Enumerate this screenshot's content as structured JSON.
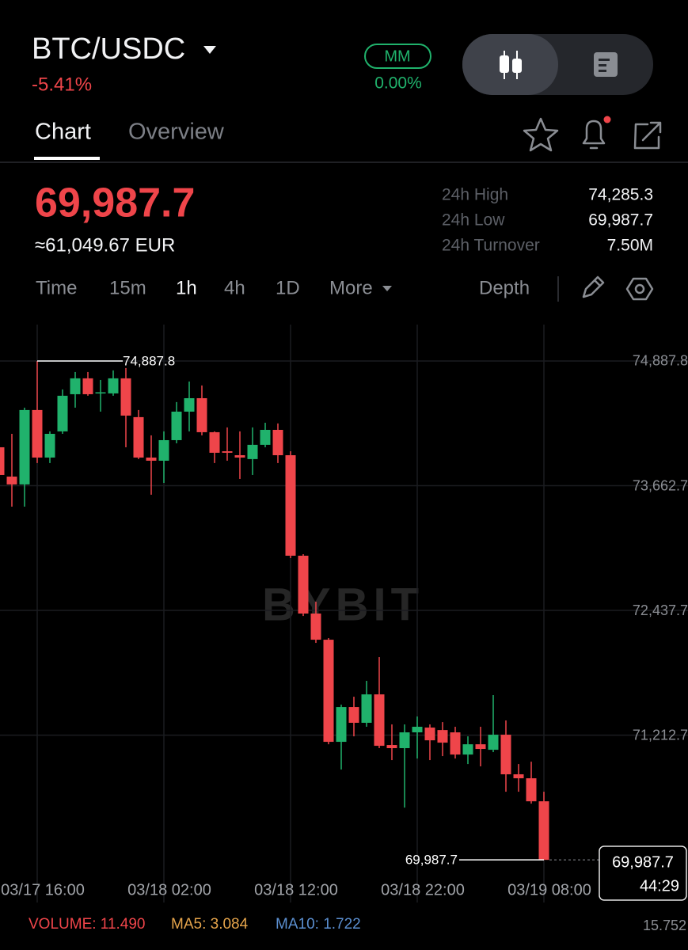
{
  "header": {
    "pair": "BTC/USDC",
    "change": "-5.41%",
    "badge": "MM",
    "badge_value": "0.00%"
  },
  "tabs": [
    "Chart",
    "Overview"
  ],
  "price": {
    "last": "69,987.7",
    "converted": "≈61,049.67 EUR"
  },
  "stats": [
    {
      "label": "24h High",
      "value": "74,285.3"
    },
    {
      "label": "24h Low",
      "value": "69,987.7"
    },
    {
      "label": "24h Turnover",
      "value": "7.50M"
    }
  ],
  "intervals": [
    "Time",
    "15m",
    "1h",
    "4h",
    "1D",
    "More",
    "Depth"
  ],
  "chart_data": {
    "type": "candlestick",
    "watermark": "BYBIT",
    "categories": [
      null,
      null,
      null,
      "03/17 16:00",
      null,
      null,
      null,
      null,
      null,
      null,
      null,
      null,
      null,
      "03/18 02:00",
      null,
      null,
      null,
      null,
      null,
      null,
      null,
      null,
      null,
      "03/18 12:00",
      null,
      null,
      null,
      null,
      null,
      null,
      null,
      null,
      null,
      "03/18 22:00",
      null,
      null,
      null,
      null,
      null,
      null,
      null,
      null,
      null,
      "03/19 08:00"
    ],
    "open": [
      74040,
      73752,
      73675,
      74406,
      73939,
      74196,
      74561,
      74717,
      74569,
      74569,
      74717,
      74336,
      73939,
      73908,
      74110,
      74390,
      74522,
      74188,
      74001,
      73962,
      73924,
      74064,
      74211,
      73962,
      72975,
      72407,
      72150,
      71147,
      71489,
      71334,
      71613,
      71116,
      71085,
      71240,
      71287,
      71263,
      71240,
      71022,
      71123,
      71069,
      71217,
      70828,
      70789,
      70563
    ],
    "high": [
      74079,
      74172,
      74429,
      74887.8,
      74196,
      74608,
      74779,
      74779,
      74701,
      74795,
      74818,
      74406,
      74157,
      74196,
      74484,
      74686,
      74647,
      74196,
      74235,
      74196,
      74235,
      74281,
      74274,
      74001,
      72990,
      72523,
      72166,
      71512,
      71590,
      71746,
      71979,
      71318,
      71318,
      71396,
      71318,
      71341,
      71295,
      71201,
      71295,
      71606,
      71357,
      70929,
      70952,
      70657
    ],
    "low": [
      73690,
      73457,
      73457,
      73885,
      73885,
      74172,
      74429,
      74546,
      74390,
      74546,
      74040,
      73924,
      73574,
      73690,
      74079,
      74196,
      74157,
      73885,
      73908,
      73729,
      73768,
      74040,
      73885,
      72951,
      72383,
      72119,
      71123,
      70875,
      71201,
      71295,
      71085,
      70968,
      70501,
      70983,
      70968,
      71007,
      70983,
      70929,
      70906,
      71046,
      70657,
      70657,
      70540,
      69987.7
    ],
    "close": [
      73768,
      73675,
      74406,
      73939,
      74172,
      74546,
      74717,
      74561,
      74580,
      74717,
      74351,
      73939,
      73908,
      74110,
      74390,
      74522,
      74188,
      73986,
      73986,
      73939,
      74064,
      74211,
      73962,
      72975,
      72407,
      72150,
      71147,
      71489,
      71334,
      71613,
      71108,
      71085,
      71240,
      71295,
      71162,
      71139,
      71022,
      71123,
      71077,
      71217,
      70828,
      70789,
      70563,
      69987.7
    ],
    "up_color": "#20b26c",
    "down_color": "#ef454a",
    "ylim": [
      69880,
      75245
    ],
    "yticks": [
      {
        "value": 71212.7,
        "label": "71,212.7"
      },
      {
        "value": 72437.7,
        "label": "72,437.7"
      },
      {
        "value": 73662.7,
        "label": "73,662.7"
      },
      {
        "value": 74887.8,
        "label": "74,887.8"
      }
    ],
    "grid": true,
    "high_label": "74,887.8",
    "low_label": "69,987.7",
    "price_tag": "69,987.7",
    "countdown": "44:29"
  },
  "indicators": {
    "volume": "VOLUME: 11.490",
    "ma5": "MA5: 3.084",
    "ma10": "MA10: 1.722",
    "axis_value": "15.752"
  }
}
